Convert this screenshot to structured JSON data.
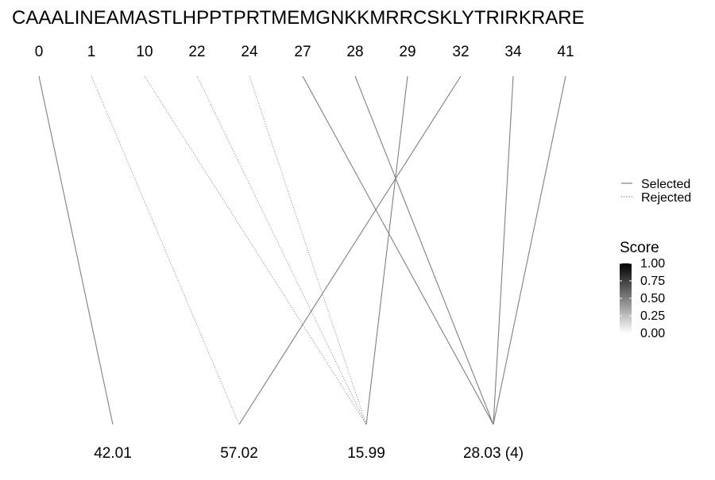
{
  "chart_data": {
    "type": "bipartite-line",
    "title": "CAAALINEAMASTLHPPTPRTMEMGNKKMRRCSKLYTRIRKRARE",
    "top_labels": [
      "0",
      "1",
      "10",
      "22",
      "24",
      "27",
      "28",
      "29",
      "32",
      "34",
      "41"
    ],
    "bottom_labels": [
      "42.01",
      "57.02",
      "15.99",
      "28.03 (4)"
    ],
    "connections": [
      {
        "from": "0",
        "to": "42.01",
        "status": "Selected"
      },
      {
        "from": "1",
        "to": "57.02",
        "status": "Rejected"
      },
      {
        "from": "10",
        "to": "15.99",
        "status": "Rejected"
      },
      {
        "from": "22",
        "to": "15.99",
        "status": "Rejected"
      },
      {
        "from": "24",
        "to": "15.99",
        "status": "Rejected"
      },
      {
        "from": "27",
        "to": "28.03 (4)",
        "status": "Selected"
      },
      {
        "from": "28",
        "to": "28.03 (4)",
        "status": "Selected"
      },
      {
        "from": "29",
        "to": "15.99",
        "status": "Selected"
      },
      {
        "from": "32",
        "to": "57.02",
        "status": "Selected"
      },
      {
        "from": "34",
        "to": "28.03 (4)",
        "status": "Selected"
      },
      {
        "from": "41",
        "to": "28.03 (4)",
        "status": "Selected"
      }
    ],
    "legend_linetype": {
      "entries": [
        "Selected",
        "Rejected"
      ],
      "placement": "right"
    },
    "legend_score": {
      "title": "Score",
      "breaks": [
        "1.00",
        "0.75",
        "0.50",
        "0.25",
        "0.00"
      ],
      "color_high": "#000000",
      "color_low": "#ffffff",
      "placement": "right"
    },
    "line_color": "#808080"
  }
}
